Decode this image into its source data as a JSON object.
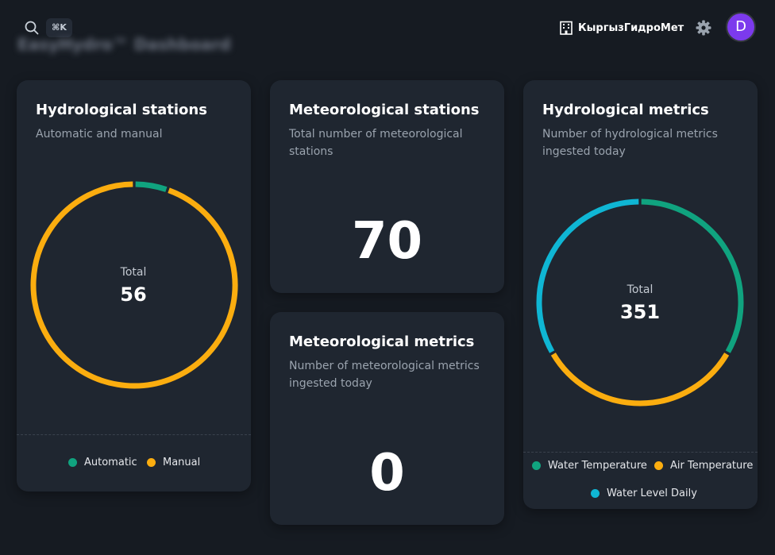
{
  "header": {
    "search_shortcut": "⌘K",
    "page_title_blurred": "EasyHydro™ Dashboard",
    "org_name": "КыргызГидроМет",
    "avatar_letter": "D"
  },
  "colors": {
    "green": "#10a37f",
    "amber": "#fbad0f",
    "cyan": "#0fb6d4",
    "avatar": "#7c3aed"
  },
  "cards": {
    "hydro_stations": {
      "title": "Hydrological stations",
      "subtitle": "Automatic and manual",
      "center_label": "Total",
      "total": "56",
      "legend": [
        {
          "label": "Automatic",
          "color": "#10a37f"
        },
        {
          "label": "Manual",
          "color": "#fbad0f"
        }
      ]
    },
    "meteo_stations": {
      "title": "Meteorological stations",
      "subtitle_line1": "Total number of meteorological",
      "subtitle_line2": "stations",
      "value": "70"
    },
    "meteo_metrics": {
      "title": "Meteorological metrics",
      "subtitle_line1": "Number of meteorological metrics",
      "subtitle_line2": "ingested today",
      "value": "0"
    },
    "hydro_metrics": {
      "title": "Hydrological metrics",
      "subtitle_line1": "Number of hydrological metrics",
      "subtitle_line2": "ingested today",
      "center_label": "Total",
      "total": "351",
      "legend": [
        {
          "label": "Water Temperature",
          "color": "#10a37f"
        },
        {
          "label": "Air Temperature",
          "color": "#fbad0f"
        },
        {
          "label": "Water Level Daily",
          "color": "#0fb6d4"
        }
      ]
    }
  },
  "chart_data": [
    {
      "type": "pie",
      "title": "Hydrological stations",
      "categories": [
        "Automatic",
        "Manual"
      ],
      "values": [
        3,
        53
      ],
      "total": 56
    },
    {
      "type": "pie",
      "title": "Hydrological metrics",
      "categories": [
        "Water Temperature",
        "Air Temperature",
        "Water Level Daily"
      ],
      "values": [
        117,
        117,
        117
      ],
      "total": 351
    }
  ]
}
